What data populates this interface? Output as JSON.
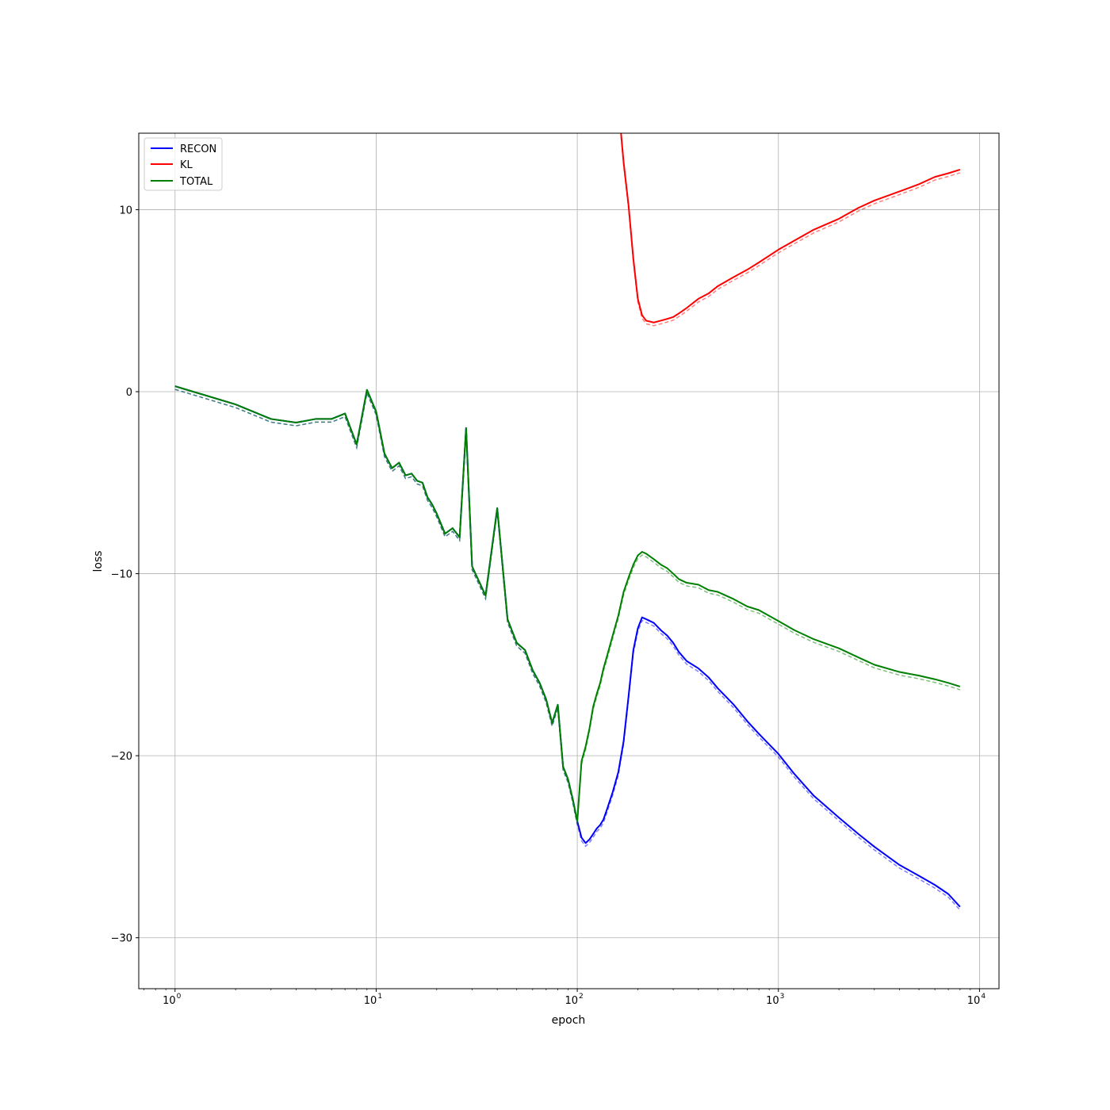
{
  "chart_data": {
    "type": "line",
    "title": "",
    "xlabel": "epoch",
    "ylabel": "loss",
    "xscale": "log",
    "xlim": [
      0.66,
      12500
    ],
    "ylim": [
      -32.8,
      14.2
    ],
    "grid": true,
    "legend_position": "top-left",
    "x_ticks": [
      {
        "value": 1,
        "base": "10",
        "exp": "0"
      },
      {
        "value": 10,
        "base": "10",
        "exp": "1"
      },
      {
        "value": 100,
        "base": "10",
        "exp": "2"
      },
      {
        "value": 1000,
        "base": "10",
        "exp": "3"
      },
      {
        "value": 10000,
        "base": "10",
        "exp": "4"
      }
    ],
    "y_ticks": [
      {
        "value": 10,
        "label": "10"
      },
      {
        "value": 0,
        "label": "0"
      },
      {
        "value": -10,
        "label": "−10"
      },
      {
        "value": -20,
        "label": "−20"
      },
      {
        "value": -30,
        "label": "−30"
      }
    ],
    "series": [
      {
        "name": "RECON",
        "color": "#0000ff",
        "x": [
          1,
          2,
          3,
          4,
          5,
          6,
          7,
          8,
          9,
          10,
          11,
          12,
          13,
          14,
          15,
          16,
          17,
          18,
          19,
          20,
          22,
          24,
          26,
          28,
          30,
          35,
          40,
          45,
          50,
          55,
          60,
          65,
          70,
          75,
          80,
          85,
          90,
          95,
          100,
          105,
          110,
          115,
          120,
          125,
          130,
          135,
          140,
          150,
          160,
          170,
          180,
          190,
          200,
          210,
          220,
          240,
          260,
          280,
          300,
          320,
          350,
          400,
          450,
          500,
          600,
          700,
          800,
          1000,
          1200,
          1500,
          2000,
          2500,
          3000,
          4000,
          5000,
          6000,
          7000,
          8000
        ],
        "y": [
          0.3,
          -0.7,
          -1.5,
          -1.7,
          -1.5,
          -1.5,
          -1.2,
          -2.9,
          0.1,
          -1.1,
          -3.4,
          -4.2,
          -3.9,
          -4.6,
          -4.5,
          -4.9,
          -5.0,
          -5.8,
          -6.2,
          -6.7,
          -7.8,
          -7.5,
          -8.0,
          -2.0,
          -9.6,
          -11.2,
          -6.4,
          -12.5,
          -13.8,
          -14.2,
          -15.3,
          -16.0,
          -16.9,
          -18.2,
          -17.2,
          -20.6,
          -21.3,
          -22.4,
          -23.6,
          -24.5,
          -24.8,
          -24.6,
          -24.3,
          -24.0,
          -23.8,
          -23.5,
          -23.0,
          -22.0,
          -20.9,
          -19.2,
          -16.7,
          -14.2,
          -13.0,
          -12.4,
          -12.5,
          -12.7,
          -13.1,
          -13.4,
          -13.8,
          -14.3,
          -14.8,
          -15.2,
          -15.7,
          -16.3,
          -17.2,
          -18.1,
          -18.8,
          -19.9,
          -21.0,
          -22.2,
          -23.4,
          -24.3,
          -25.0,
          -26.0,
          -26.6,
          -27.1,
          -27.6,
          -28.3
        ]
      },
      {
        "name": "KL",
        "color": "#ff0000",
        "x": [
          165,
          170,
          180,
          190,
          200,
          210,
          220,
          240,
          260,
          280,
          300,
          320,
          350,
          400,
          450,
          500,
          600,
          700,
          800,
          1000,
          1200,
          1500,
          2000,
          2500,
          3000,
          4000,
          5000,
          6000,
          7000,
          8000
        ],
        "y": [
          14.2,
          12.6,
          10.2,
          7.3,
          5.1,
          4.2,
          3.9,
          3.8,
          3.9,
          4.0,
          4.1,
          4.3,
          4.6,
          5.1,
          5.4,
          5.8,
          6.3,
          6.7,
          7.1,
          7.8,
          8.3,
          8.9,
          9.5,
          10.1,
          10.5,
          11.0,
          11.4,
          11.8,
          12.0,
          12.2
        ]
      },
      {
        "name": "TOTAL",
        "color": "#008000",
        "x": [
          1,
          2,
          3,
          4,
          5,
          6,
          7,
          8,
          9,
          10,
          11,
          12,
          13,
          14,
          15,
          16,
          17,
          18,
          19,
          20,
          22,
          24,
          26,
          28,
          30,
          35,
          40,
          45,
          50,
          55,
          60,
          65,
          70,
          75,
          80,
          85,
          90,
          95,
          100,
          105,
          110,
          115,
          120,
          125,
          130,
          135,
          140,
          150,
          160,
          170,
          180,
          190,
          200,
          210,
          220,
          240,
          260,
          280,
          300,
          320,
          350,
          400,
          450,
          500,
          600,
          700,
          800,
          1000,
          1200,
          1500,
          2000,
          2500,
          3000,
          4000,
          5000,
          6000,
          7000,
          8000
        ],
        "y": [
          0.3,
          -0.7,
          -1.5,
          -1.7,
          -1.5,
          -1.5,
          -1.2,
          -2.9,
          0.1,
          -1.1,
          -3.4,
          -4.2,
          -3.9,
          -4.6,
          -4.5,
          -4.9,
          -5.0,
          -5.8,
          -6.2,
          -6.7,
          -7.8,
          -7.5,
          -8.0,
          -2.0,
          -9.6,
          -11.2,
          -6.4,
          -12.5,
          -13.8,
          -14.2,
          -15.3,
          -16.0,
          -16.9,
          -18.2,
          -17.2,
          -20.6,
          -21.3,
          -22.4,
          -23.6,
          -20.3,
          -19.5,
          -18.5,
          -17.3,
          -16.6,
          -16.0,
          -15.2,
          -14.6,
          -13.4,
          -12.3,
          -11.0,
          -10.2,
          -9.5,
          -9.0,
          -8.8,
          -8.9,
          -9.2,
          -9.5,
          -9.7,
          -10.0,
          -10.3,
          -10.5,
          -10.6,
          -10.9,
          -11.0,
          -11.4,
          -11.8,
          -12.0,
          -12.6,
          -13.1,
          -13.6,
          -14.1,
          -14.6,
          -15.0,
          -15.4,
          -15.6,
          -15.8,
          -16.0,
          -16.2
        ]
      }
    ]
  }
}
